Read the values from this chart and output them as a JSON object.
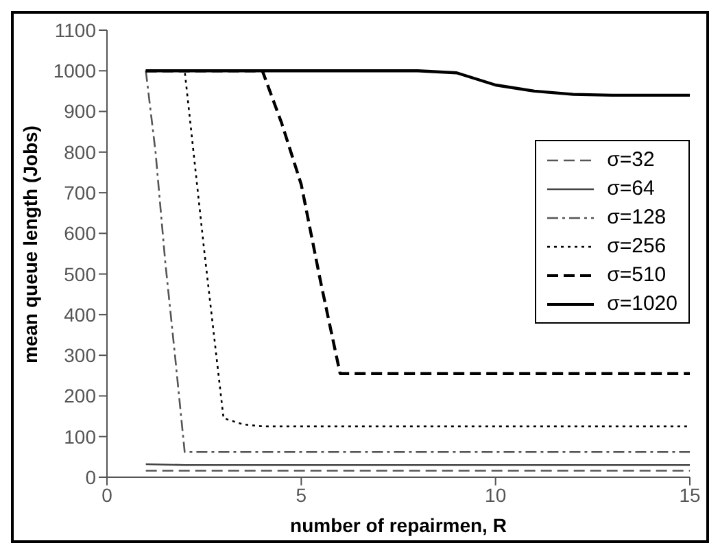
{
  "chart_data": {
    "type": "line",
    "xlabel": "number of repairmen, R",
    "ylabel": "mean queue length (Jobs)",
    "xlim": [
      0,
      15
    ],
    "xticks": [
      0,
      5,
      10,
      15
    ],
    "ylim": [
      0,
      1100
    ],
    "yticks": [
      0,
      100,
      200,
      300,
      400,
      500,
      600,
      700,
      800,
      900,
      1000,
      1100
    ],
    "legend": "right",
    "marker": "none",
    "series": [
      {
        "name": "σ=32",
        "color": "#555555",
        "line_style": "dashed",
        "x": [
          1,
          15
        ],
        "values": [
          16,
          16
        ]
      },
      {
        "name": "σ=64",
        "color": "#444444",
        "line_style": "solid",
        "x": [
          1,
          2,
          15
        ],
        "values": [
          32,
          30,
          30
        ]
      },
      {
        "name": "σ=128",
        "color": "#555555",
        "line_style": "dashdot",
        "x": [
          1,
          1.25,
          1.5,
          1.75,
          2,
          15
        ],
        "values": [
          1000,
          800,
          530,
          300,
          62,
          62
        ]
      },
      {
        "name": "σ=256",
        "color": "#000000",
        "line_style": "dotted",
        "x": [
          1,
          2,
          2.5,
          3,
          3.5,
          4,
          15
        ],
        "values": [
          1000,
          1000,
          560,
          145,
          130,
          125,
          125
        ]
      },
      {
        "name": "σ=510",
        "color": "#000000",
        "line_style": "dashed",
        "x": [
          1,
          4,
          4.5,
          5,
          5.5,
          6,
          15
        ],
        "values": [
          1000,
          1000,
          870,
          720,
          480,
          255,
          255
        ]
      },
      {
        "name": "σ=1020",
        "color": "#000000",
        "line_style": "solid",
        "x": [
          1,
          8,
          9,
          10,
          11,
          12,
          13,
          15
        ],
        "values": [
          1000,
          1000,
          995,
          965,
          950,
          942,
          940,
          940
        ]
      }
    ]
  }
}
